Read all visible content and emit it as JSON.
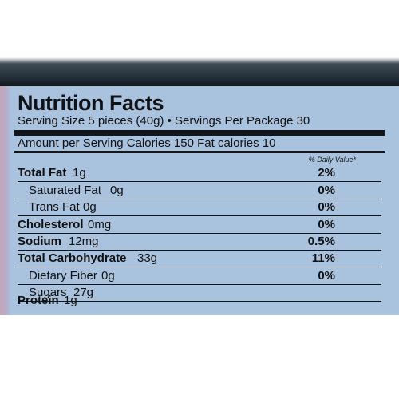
{
  "label": {
    "title": "Nutrition Facts",
    "serving": "Serving Size 5 pieces (40g) • Servings Per Package 30",
    "amount_per_serving": "Amount per Serving Calories 150  Fat calories 10",
    "daily_value_header": "% Daily Value*",
    "rows": [
      {
        "name": "Total Fat",
        "value": "1g",
        "dv": "2%",
        "bold": true
      },
      {
        "name": "Saturated Fat",
        "value": "0g",
        "dv": "0%",
        "bold": false
      },
      {
        "name": "Trans Fat",
        "value": "0g",
        "dv": "0%",
        "bold": false
      },
      {
        "name": "Cholesterol",
        "value": "0mg",
        "dv": "0%",
        "bold": true
      },
      {
        "name": "Sodium",
        "value": "12mg",
        "dv": "0.5%",
        "bold": true
      },
      {
        "name": "Total Carbohydrate",
        "value": "33g",
        "dv": "11%",
        "bold": true
      },
      {
        "name": "Dietary Fiber",
        "value": "0g",
        "dv": "0%",
        "bold": false
      },
      {
        "name": "Sugars",
        "value": "27g",
        "dv": "",
        "bold": false
      },
      {
        "name": "Protein",
        "value": "1g",
        "dv": "",
        "bold": true
      }
    ]
  },
  "colors": {
    "label_background": "#a9c2de",
    "text": "#111111",
    "dark_band": "#0f141a"
  }
}
